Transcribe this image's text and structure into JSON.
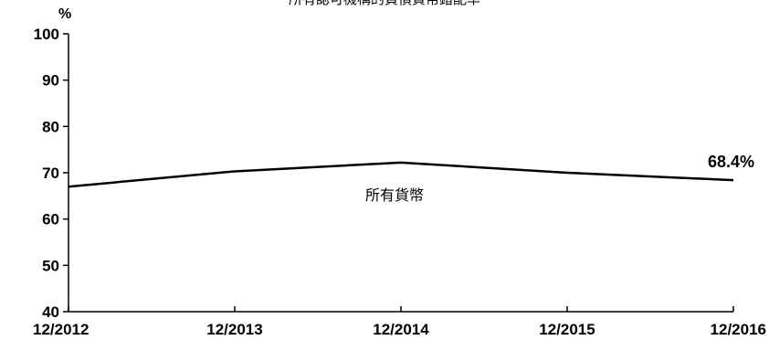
{
  "chart_data": {
    "type": "line",
    "title": "所有認可機構的負債貨幣錯配率",
    "ylabel": "%",
    "xlabel": "",
    "categories": [
      "12/2012",
      "12/2013",
      "12/2014",
      "12/2015",
      "12/2016"
    ],
    "ylim": [
      40,
      100
    ],
    "yticks": [
      40,
      50,
      60,
      70,
      80,
      90,
      100
    ],
    "grid": false,
    "series": [
      {
        "name": "所有貨幣",
        "values": [
          67.0,
          70.3,
          72.2,
          70.0,
          68.4
        ],
        "color": "#000000",
        "end_label": "68.4%"
      }
    ]
  }
}
